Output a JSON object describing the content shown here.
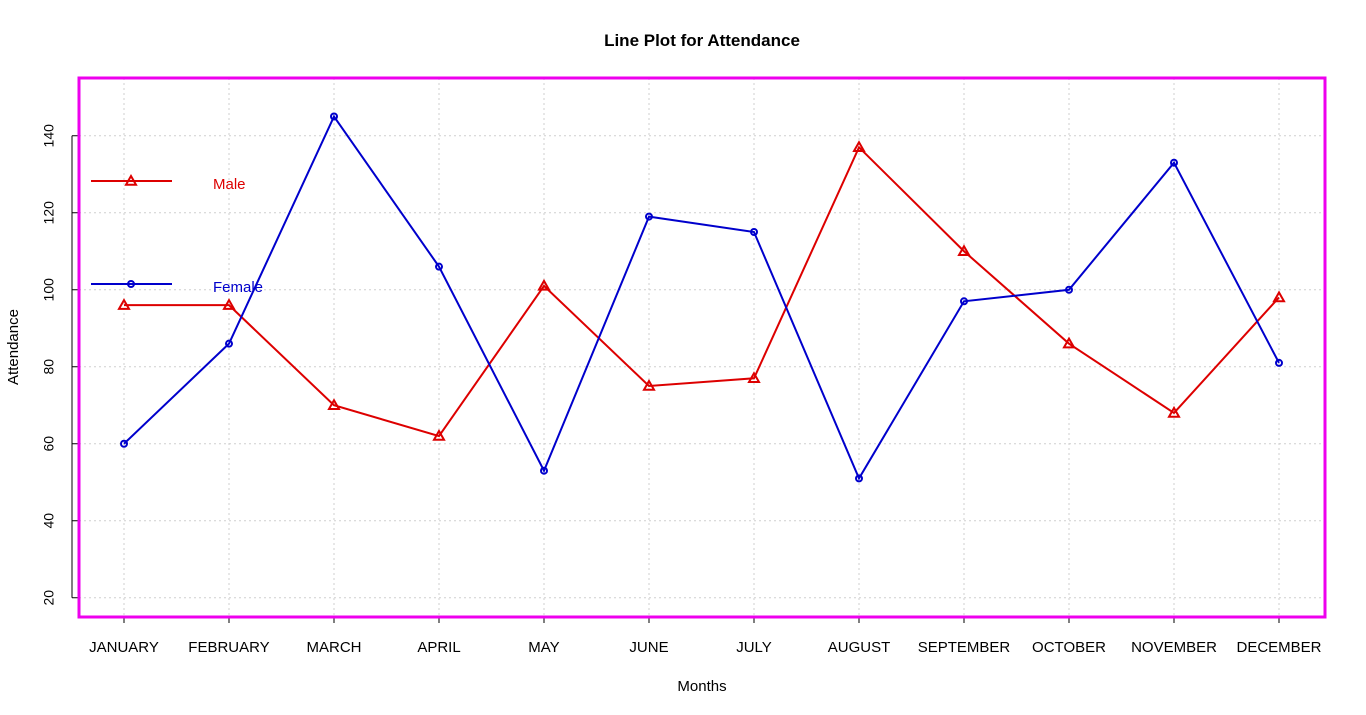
{
  "chart_data": {
    "type": "line",
    "title": "Line Plot for Attendance",
    "xlabel": "Months",
    "ylabel": "Attendance",
    "categories": [
      "JANUARY",
      "FEBRUARY",
      "MARCH",
      "APRIL",
      "MAY",
      "JUNE",
      "JULY",
      "AUGUST",
      "SEPTEMBER",
      "OCTOBER",
      "NOVEMBER",
      "DECEMBER"
    ],
    "y_ticks": [
      20,
      40,
      60,
      80,
      100,
      120,
      140
    ],
    "ylim": [
      15,
      155
    ],
    "grid": true,
    "legend_position": "left",
    "series": [
      {
        "name": "Male",
        "color": "#dd0000",
        "marker": "triangle",
        "values": [
          96,
          96,
          70,
          62,
          101,
          75,
          77,
          137,
          110,
          86,
          68,
          98
        ]
      },
      {
        "name": "Female",
        "color": "#0000cc",
        "marker": "circle",
        "values": [
          60,
          86,
          145,
          106,
          53,
          119,
          115,
          51,
          97,
          100,
          133,
          81
        ]
      }
    ],
    "box_color": "#ee00ee"
  }
}
